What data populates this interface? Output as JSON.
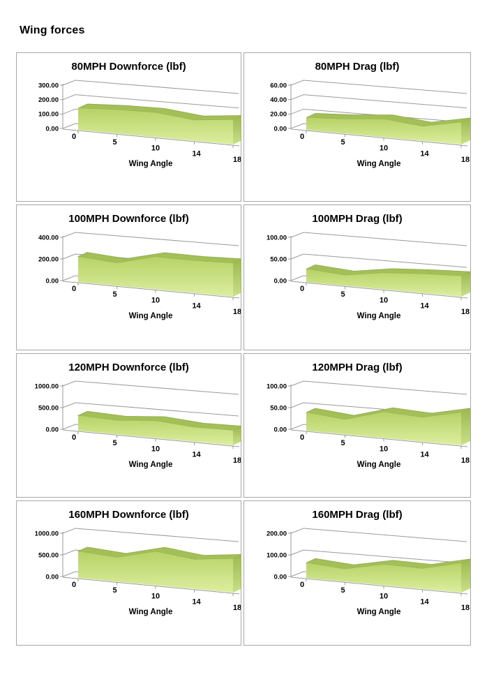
{
  "page": {
    "title": "Wing forces"
  },
  "colors": {
    "grid": "#9a9a9a",
    "axis": "#9a9a9a",
    "box_border": "#a6a6a6",
    "area_top_face": "#a3bf58",
    "area_top_stroke": "#8fab4a",
    "area_front_top": "#b7d266",
    "area_front_bottom": "#dcee9f",
    "area_side_top": "#9db84f",
    "area_side_bottom": "#c9e089",
    "text": "#000000"
  },
  "chart_data": [
    {
      "type": "area",
      "title": "80MPH Downforce (lbf)",
      "xlabel": "Wing Angle",
      "categories": [
        "0",
        "5",
        "10",
        "14",
        "18"
      ],
      "values": [
        150,
        165,
        170,
        143,
        172
      ],
      "ylim": [
        0,
        300
      ],
      "ymax": 300,
      "ytick_labels": [
        "0.00",
        "100.00",
        "200.00",
        "300.00"
      ],
      "grid": true,
      "legend": "none"
    },
    {
      "type": "area",
      "title": "80MPH Drag (lbf)",
      "xlabel": "Wing Angle",
      "categories": [
        "0",
        "5",
        "10",
        "14",
        "18"
      ],
      "values": [
        17,
        20,
        25,
        20,
        31
      ],
      "ylim": [
        0,
        60
      ],
      "ymax": 60,
      "ytick_labels": [
        "0.00",
        "20.00",
        "40.00",
        "60.00"
      ],
      "grid": true,
      "legend": "none"
    },
    {
      "type": "area",
      "title": "100MPH Downforce (lbf)",
      "xlabel": "Wing Angle",
      "categories": [
        "0",
        "5",
        "10",
        "14",
        "18"
      ],
      "values": [
        235,
        210,
        300,
        298,
        310
      ],
      "ylim": [
        0,
        400
      ],
      "ymax": 400,
      "ytick_labels": [
        "0.00",
        "200.00",
        "400.00"
      ],
      "grid": true,
      "legend": "none"
    },
    {
      "type": "area",
      "title": "100MPH Drag (lbf)",
      "xlabel": "Wing Angle",
      "categories": [
        "0",
        "5",
        "10",
        "14",
        "18"
      ],
      "values": [
        30,
        24,
        38,
        44,
        48
      ],
      "ylim": [
        0,
        100
      ],
      "ymax": 100,
      "ytick_labels": [
        "0.00",
        "50.00",
        "100.00"
      ],
      "grid": true,
      "legend": "none"
    },
    {
      "type": "area",
      "title": "120MPH Downforce (lbf)",
      "xlabel": "Wing Angle",
      "categories": [
        "0",
        "5",
        "10",
        "14",
        "18"
      ],
      "values": [
        350,
        320,
        395,
        330,
        345
      ],
      "ylim": [
        0,
        1000
      ],
      "ymax": 1000,
      "ytick_labels": [
        "0.00",
        "500.00",
        "1000.00"
      ],
      "grid": true,
      "legend": "none"
    },
    {
      "type": "area",
      "title": "120MPH Drag (lbf)",
      "xlabel": "Wing Angle",
      "categories": [
        "0",
        "5",
        "10",
        "14",
        "18"
      ],
      "values": [
        42,
        34,
        60,
        56,
        76
      ],
      "ylim": [
        0,
        100
      ],
      "ymax": 100,
      "ytick_labels": [
        "0.00",
        "50.00",
        "100.00"
      ],
      "grid": true,
      "legend": "none"
    },
    {
      "type": "area",
      "title": "160MPH Downforce (lbf)",
      "xlabel": "Wing Angle",
      "categories": [
        "0",
        "5",
        "10",
        "14",
        "18"
      ],
      "values": [
        615,
        555,
        780,
        680,
        785
      ],
      "ylim": [
        0,
        1000
      ],
      "ymax": 1000,
      "ytick_labels": [
        "0.00",
        "500.00",
        "1000.00"
      ],
      "grid": true,
      "legend": "none"
    },
    {
      "type": "area",
      "title": "160MPH Drag (lbf)",
      "xlabel": "Wing Angle",
      "categories": [
        "0",
        "5",
        "10",
        "14",
        "18"
      ],
      "values": [
        70,
        58,
        96,
        94,
        136
      ],
      "ylim": [
        0,
        200
      ],
      "ymax": 200,
      "ytick_labels": [
        "0.00",
        "100.00",
        "200.00"
      ],
      "grid": true,
      "legend": "none"
    }
  ]
}
